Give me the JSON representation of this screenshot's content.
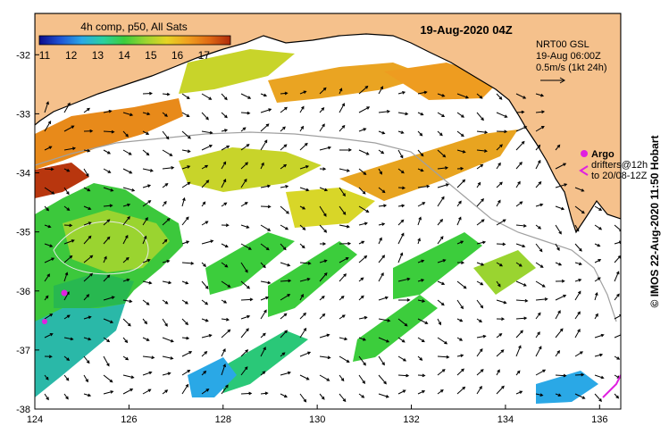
{
  "map": {
    "date_title": "19-Aug-2020 04Z",
    "colorbar": {
      "title": "4h comp, p50, All Sats",
      "ticks": [
        "11",
        "12",
        "13",
        "14",
        "15",
        "16",
        "17"
      ],
      "stops": [
        "#0b0b8c",
        "#1f55d6",
        "#2aa8e6",
        "#2ad0a0",
        "#3ccd3c",
        "#9ad430",
        "#e6d424",
        "#f0a020",
        "#e06a14",
        "#b02a0a"
      ]
    },
    "current_legend": {
      "line1": "NRT00 GSL",
      "line2": "19-Aug 06:00Z",
      "line3": "0.5m/s (1kt 24h)"
    },
    "markers_legend": {
      "argo": "Argo",
      "drifters_line1": "drifters@12h",
      "drifters_line2": "to 20/08-12Z",
      "argo_color": "#e020e0"
    },
    "axes": {
      "lat_ticks": [
        "-32",
        "-33",
        "-34",
        "-35",
        "-36",
        "-37",
        "-38"
      ],
      "lon_ticks": [
        "124",
        "126",
        "128",
        "130",
        "132",
        "134",
        "136"
      ]
    },
    "credit": "© IMOS 22-Aug-2020 11:50 Hobart",
    "colors": {
      "land": "#f5c18c",
      "no_data": "#ffffff"
    }
  }
}
